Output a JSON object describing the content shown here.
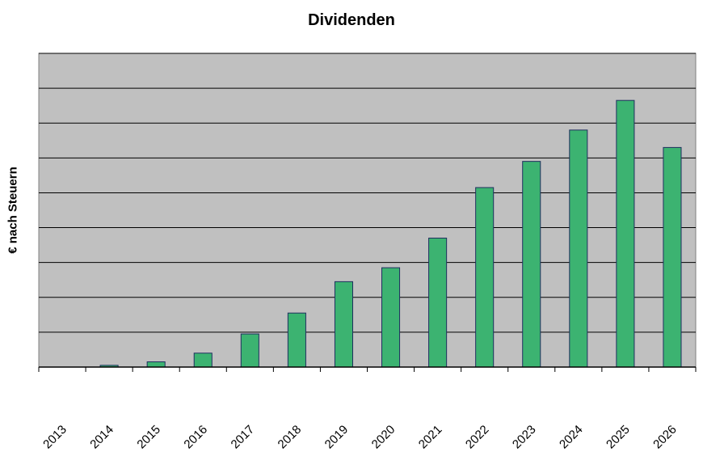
{
  "chart_data": {
    "type": "bar",
    "title": "Dividenden",
    "xlabel": "",
    "ylabel": "€ nach Steuern",
    "categories": [
      "2013",
      "2014",
      "2015",
      "2016",
      "2017",
      "2018",
      "2019",
      "2020",
      "2021",
      "2022",
      "2023",
      "2024",
      "2025",
      "2026"
    ],
    "values": [
      0,
      0.5,
      1.5,
      4,
      9.5,
      15.5,
      24.5,
      28.5,
      37,
      51.5,
      59,
      68,
      76.5,
      63
    ],
    "ylim": [
      0,
      90
    ],
    "y_gridlines": 9,
    "y_tick_labels_shown": false,
    "grid": true,
    "legend": "none",
    "colors": {
      "bar_fill": "#3cb371",
      "bar_stroke": "#1f2f5f",
      "plot_background": "#c0c0c0",
      "gridline": "#000000"
    }
  }
}
